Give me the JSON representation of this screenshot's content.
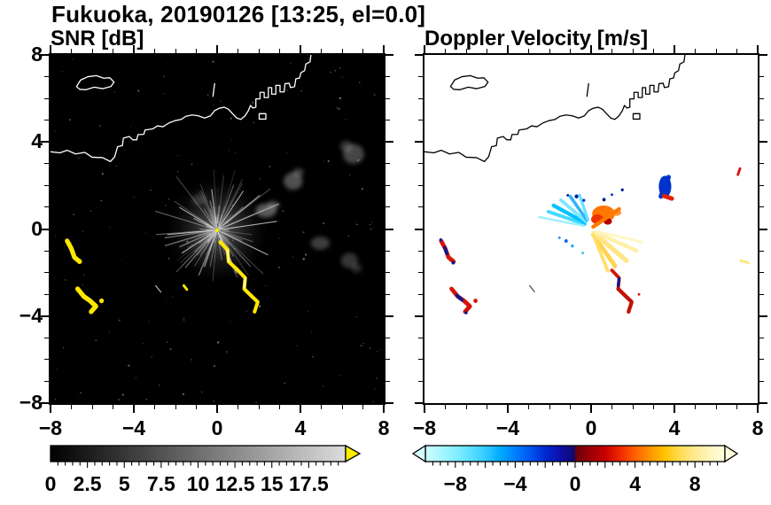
{
  "title": "Fukuoka, 20190126 [13:25, el=0.0]",
  "panels": {
    "snr": {
      "title": "SNR [dB]"
    },
    "doppler": {
      "title": "Doppler Velocity [m/s]"
    }
  },
  "axes": {
    "x_tick_labels": [
      "−8",
      "−4",
      "0",
      "4",
      "8"
    ],
    "x_tick_values": [
      -8,
      -4,
      0,
      4,
      8
    ],
    "y_tick_labels": [
      "8",
      "4",
      "0",
      "−4",
      "−8"
    ],
    "y_tick_values": [
      8,
      4,
      0,
      -4,
      -8
    ]
  },
  "colorbars": {
    "snr": {
      "tick_labels": [
        "0",
        "2.5",
        "5",
        "7.5",
        "10",
        "12.5",
        "15",
        "17.5"
      ],
      "tick_values": [
        0,
        2.5,
        5,
        7.5,
        10,
        12.5,
        15,
        17.5
      ],
      "range": [
        0,
        20
      ],
      "palette": "grayscale black to light gray",
      "over_arrow_color": "#ffee00"
    },
    "doppler": {
      "tick_labels": [
        "−8",
        "−4",
        "0",
        "4",
        "8"
      ],
      "tick_values": [
        -8,
        -4,
        0,
        4,
        8
      ],
      "range": [
        -10,
        10
      ],
      "palette": "pale cyan → blue → navy | dark red → red → orange → pale yellow",
      "under_arrow_color": "#d5ffff",
      "over_arrow_color": "#ffffdd"
    }
  },
  "chart_data": [
    {
      "type": "heatmap",
      "title": "SNR [dB]",
      "suptitle": "Fukuoka, 20190126 [13:25, el=0.0]",
      "xlim": [
        -8,
        8
      ],
      "ylim": [
        -8,
        8
      ],
      "x_ticks": [
        -8,
        -4,
        0,
        4,
        8
      ],
      "y_ticks": [
        -8,
        -4,
        0,
        4,
        8
      ],
      "grid": false,
      "background": "#000000",
      "colorbar": {
        "range": [
          0,
          20
        ],
        "ticks": [
          0,
          2.5,
          5,
          7.5,
          10,
          12.5,
          15,
          17.5
        ],
        "palette": "grayscale",
        "over_color": "yellow"
      },
      "features": [
        {
          "label": "radar starburst of gray radial rays centered at origin",
          "center": [
            0,
            0
          ],
          "radius": 2.6
        },
        {
          "label": "high-SNR yellow arc echo south-east of radar",
          "path": [
            [
              0.15,
              -0.6
            ],
            [
              0.55,
              -1.5
            ],
            [
              1.35,
              -2.25
            ],
            [
              1.6,
              -3.05
            ],
            [
              1.8,
              -3.8
            ]
          ]
        },
        {
          "label": "high-SNR yellow patches south-west",
          "path": [
            [
              -7.2,
              -0.6
            ],
            [
              -6.6,
              -1.5
            ],
            [
              -6.7,
              -2.8
            ],
            [
              -5.8,
              -3.6
            ],
            [
              -5.55,
              -3.3
            ]
          ]
        },
        {
          "label": "diffuse gray echoes",
          "points": [
            [
              2.4,
              0.9
            ],
            [
              3.7,
              2.3
            ],
            [
              6.6,
              3.5
            ],
            [
              5.0,
              -0.7
            ],
            [
              6.4,
              -1.5
            ]
          ]
        },
        {
          "label": "white coastline of Fukuoka bay with harbor piers and island along north"
        }
      ]
    },
    {
      "type": "heatmap",
      "title": "Doppler Velocity [m/s]",
      "xlim": [
        -8,
        8
      ],
      "ylim": [
        -8,
        8
      ],
      "x_ticks": [
        -8,
        -4,
        0,
        4,
        8
      ],
      "y_ticks": [
        -8,
        -4,
        0,
        4,
        8
      ],
      "grid": false,
      "background": "#ffffff",
      "colorbar": {
        "range": [
          -10,
          10
        ],
        "ticks": [
          -8,
          -4,
          0,
          4,
          8
        ],
        "palette": "cyan-blue-navy / darkred-red-orange-yellow",
        "under_color": "pale cyan",
        "over_color": "pale yellow"
      },
      "features": [
        {
          "label": "negative velocity (cyan/blue) fan north-west of radar",
          "extent": [
            [
              -2.5,
              0.2
            ],
            [
              -0.3,
              1.6
            ]
          ]
        },
        {
          "label": "positive velocity (orange/red) lobe north-east of radar",
          "extent": [
            [
              0.0,
              0.1
            ],
            [
              1.6,
              1.0
            ]
          ]
        },
        {
          "label": "weak positive (pale yellow) fan south-east of radar",
          "extent": [
            [
              0.1,
              -2.0
            ],
            [
              2.5,
              -0.1
            ]
          ]
        },
        {
          "label": "red/navy arc echo south-east",
          "path": [
            [
              1.0,
              -1.9
            ],
            [
              1.3,
              -2.75
            ],
            [
              1.95,
              -3.35
            ],
            [
              1.8,
              -3.8
            ]
          ]
        },
        {
          "label": "red/navy patches south-west",
          "path": [
            [
              -7.2,
              -0.6
            ],
            [
              -6.6,
              -1.5
            ],
            [
              -6.7,
              -2.8
            ],
            [
              -5.8,
              -3.6
            ]
          ]
        },
        {
          "label": "blue/red cell north-east",
          "center": [
            3.6,
            1.9
          ]
        },
        {
          "label": "black coastline of Fukuoka bay along north"
        }
      ]
    }
  ]
}
